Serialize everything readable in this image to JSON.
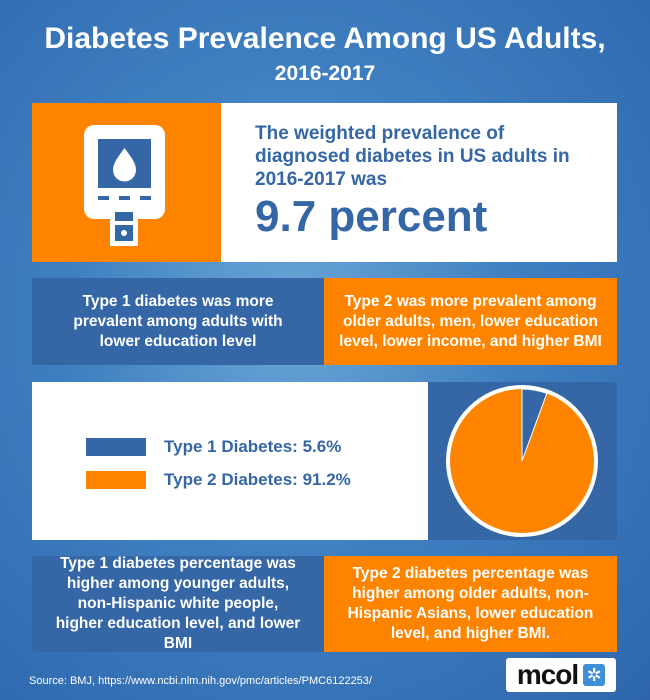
{
  "title": {
    "line1": "Diabetes Prevalence Among US Adults,",
    "line2": "2016-2017"
  },
  "headline": {
    "text": "The weighted prevalence of diagnosed diabetes in US adults in 2016-2017 was",
    "value": "9.7 percent",
    "icon": "glucose-meter-icon"
  },
  "row2": {
    "left": "Type 1 diabetes was more prevalent among adults with lower education level",
    "right": "Type 2 was more prevalent among older adults, men, lower education level, lower income, and higher BMI"
  },
  "chart_data": {
    "type": "pie",
    "series": [
      {
        "name": "Type 1 Diabetes: 5.6%",
        "value": 5.6,
        "color": "#3566a6"
      },
      {
        "name": "Type 2 Diabetes: 91.2%",
        "value": 91.2,
        "color": "#fe8400"
      }
    ],
    "legend": "left"
  },
  "row4": {
    "left": "Type 1 diabetes percentage was higher among younger adults, non-Hispanic white people, higher education level, and  lower BMI",
    "right": "Type 2 diabetes percentage was higher among older adults, non-Hispanic Asians,  lower education level, and higher BMI."
  },
  "footer": {
    "source": "Source: BMJ, https://www.ncbi.nlm.nih.gov/pmc/articles/PMC6122253/",
    "logo": "mcol"
  },
  "colors": {
    "blue": "#3566a6",
    "orange": "#fe8400"
  }
}
